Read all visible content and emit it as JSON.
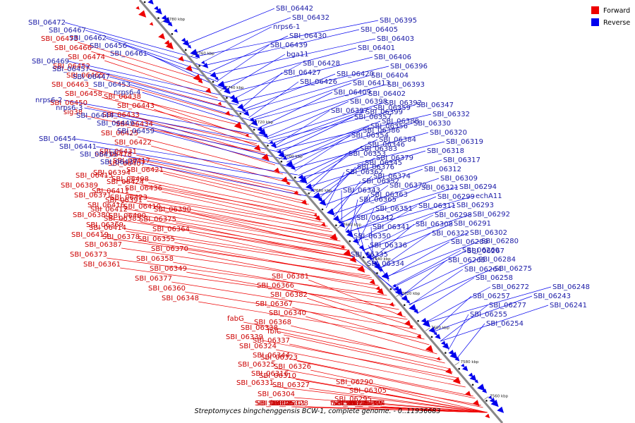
{
  "caption": "Streptomyces bingchenggensis BCW-1, complete genome. - 0..11936683",
  "legend": [
    {
      "label": "Forward",
      "color": "#ee0000"
    },
    {
      "label": "Reverse",
      "color": "#0000ee"
    }
  ],
  "axis_ticks": [
    "7780 kbp",
    "7760 kbp",
    "7740 kbp",
    "7720 kbp",
    "7700 kbp",
    "7680 kbp",
    "7660 kbp",
    "7640 kbp",
    "7620 kbp",
    "7600 kbp",
    "7580 kbp",
    "7560 kbp"
  ],
  "colors": {
    "forward": "#ee0000",
    "reverse": "#0000ee",
    "label_forward": "#cc0000",
    "label_reverse": "#1a1aa6",
    "axis": "#888888"
  },
  "reverse_genes": [
    "SBI_06472",
    "SBI_06467",
    "SBI_06462",
    "SBI_06456",
    "SBI_06461",
    "SBI_06469",
    "SBI_06457",
    "SBI_06447",
    "SBI_06453",
    "nrps6-4",
    "nrps6-2",
    "nrps6-3",
    "SBI_06444",
    "SBI_06449",
    "SBI_06459",
    "SBI_06454",
    "SBI_06441",
    "SBI_06435",
    "SBI_06437",
    "SBI_06442",
    "SBI_06432",
    "nrps6-1",
    "SBI_06430",
    "SBI_06439",
    "bga11",
    "SBI_06428",
    "SBI_06427",
    "SBI_06426",
    "SBI_06420",
    "SBI_06413",
    "SBI_06409",
    "SBI_06398",
    "SBI_06397",
    "SBI_06395",
    "SBI_06405",
    "SBI_06403",
    "SBI_06401",
    "SBI_06406",
    "SBI_06396",
    "SBI_06404",
    "SBI_06393",
    "SBI_06402",
    "SBI_06392",
    "SBI_06399",
    "SBI_06388",
    "SBI_06386",
    "SBI_06384",
    "SBI_06383",
    "SBI_06379",
    "SBI_06376",
    "SBI_06374",
    "SBI_06372",
    "SBI_06363",
    "SBI_06359",
    "SBI_06357",
    "SBI_06356",
    "SBI_06354",
    "SBI_06346",
    "SBI_06353",
    "SBI_06345",
    "SBI_06362",
    "SBI_06352",
    "SBI_06343",
    "SBI_06365",
    "SBI_06351",
    "SBI_06342",
    "SBI_06341",
    "SBI_06350",
    "SBI_06336",
    "SBI_06335",
    "SBI_06334",
    "SBI_06347",
    "SBI_06332",
    "SBI_06330",
    "SBI_06320",
    "SBI_06319",
    "SBI_06318",
    "SBI_06317",
    "SBI_06312",
    "SBI_06309",
    "SBI_06321",
    "SBI_06299",
    "SBI_06311",
    "SBI_06298",
    "SBI_06308",
    "SBI_06322",
    "SBI_06294",
    "echA11",
    "SBI_06293",
    "SBI_06292",
    "SBI_06291",
    "SBI_06302",
    "SBI_06289",
    "SBI_06267",
    "SBI_06265",
    "SBI_06264",
    "SBI_06280",
    "SBI_06260",
    "SBI_06284",
    "SBI_06275",
    "SBI_06258",
    "SBI_06272",
    "SBI_06257",
    "SBI_06277",
    "SBI_06255",
    "SBI_06254",
    "SBI_06248",
    "SBI_06243",
    "SBI_06241"
  ],
  "forward_genes": [
    "SBI_06473",
    "SBI_06466",
    "SBI_06474",
    "SBI_06452",
    "SBI_06465",
    "SBI_06463",
    "SBI_06458",
    "SBI_06450",
    "sig38",
    "SBI_06438",
    "SBI_06443",
    "SBI_06433",
    "SBI_06434",
    "SBI_06425",
    "SBI_06422",
    "SBI_06431",
    "SBI_06417",
    "SBI_06421",
    "SBI_06408",
    "SBI_06436",
    "SBI_06423",
    "SBI_06410",
    "SBI_06400",
    "SBI_06418",
    "SBI_06407",
    "SBI_06394",
    "SBI_06424",
    "SBI_06411",
    "SBI_06391",
    "SBI_06412",
    "SBI_06385",
    "SBI_06414",
    "SBI_06378",
    "SBI_06415",
    "SBI_06389",
    "SBI_06371",
    "SBI_06416",
    "SBI_06380",
    "SBI_06369",
    "SBI_06419",
    "SBI_06387",
    "SBI_06373",
    "SBI_06361",
    "SBI_06390",
    "SBI_06375",
    "SBI_06364",
    "SBI_06355",
    "SBI_06370",
    "SBI_06358",
    "SBI_06349",
    "SBI_06377",
    "SBI_06360",
    "SBI_06348",
    "SBI_06381",
    "SBI_06366",
    "SBI_06382",
    "SBI_06367",
    "SBI_06340",
    "SBI_06368",
    "fbiC",
    "SBI_06337",
    "fabG",
    "SBI_06338",
    "SBI_06339",
    "SBI_06324",
    "SBI_06344",
    "SBI_06325",
    "SBI_06316",
    "SBI_06331",
    "SBI_06323",
    "SBI_06326",
    "SBI_06310",
    "SBI_06327",
    "SBI_06304",
    "SBI_06328",
    "SBI_06306",
    "fadE25",
    "SBI_06313",
    "SBI_06301",
    "SBI_06290",
    "SBI_06305",
    "SBI_06295",
    "SBI_06314",
    "SBI_06296",
    "SBI_06285",
    "SBI_06315",
    "SBI_06297",
    "fadE24",
    "SBI_06279"
  ]
}
